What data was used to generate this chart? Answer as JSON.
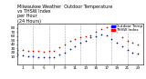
{
  "title": "Milwaukee Weather  Outdoor Temperature\nvs THSW Index\nper Hour\n(24 Hours)",
  "title_color": "#000000",
  "background_color": "#ffffff",
  "plot_bg_color": "#ffffff",
  "grid_color": "#aaaaaa",
  "xlim": [
    0,
    24
  ],
  "ylim": [
    -10,
    90
  ],
  "x_ticks": [
    1,
    3,
    5,
    7,
    9,
    11,
    13,
    15,
    17,
    19,
    21,
    23
  ],
  "y_ticks": [
    10,
    20,
    30,
    40,
    50,
    60,
    70,
    80
  ],
  "y_tick_labels": [
    "10",
    "20",
    "30",
    "40",
    "50",
    "60",
    "70",
    "80"
  ],
  "temp_color": "#cc0000",
  "thsw_color": "#0000cc",
  "legend_temp_label": "Outdoor Temp",
  "legend_thsw_label": "THSW Index",
  "legend_temp_color": "#0000ff",
  "legend_thsw_color": "#ff0000",
  "temp_x": [
    0,
    1,
    2,
    3,
    4,
    5,
    6,
    7,
    8,
    9,
    10,
    11,
    12,
    13,
    14,
    15,
    16,
    17,
    18,
    19,
    20,
    21,
    22,
    23
  ],
  "temp_y": [
    27,
    26,
    25,
    24,
    23,
    22,
    23,
    24,
    32,
    40,
    48,
    53,
    57,
    60,
    62,
    70,
    78,
    82,
    78,
    70,
    58,
    48,
    43,
    40
  ],
  "thsw_x": [
    0,
    1,
    2,
    3,
    4,
    5,
    6,
    7,
    8,
    9,
    10,
    11,
    12,
    13,
    14,
    15,
    16,
    17,
    18,
    19,
    20,
    21,
    22,
    23
  ],
  "thsw_y": [
    14,
    13,
    11,
    10,
    9,
    8,
    8,
    9,
    14,
    20,
    29,
    36,
    43,
    49,
    56,
    60,
    64,
    62,
    52,
    44,
    34,
    26,
    20,
    18
  ],
  "vgrid_positions": [
    3,
    6,
    9,
    12,
    15,
    18,
    21
  ],
  "marker_size": 1.5,
  "title_fontsize": 3.5,
  "tick_fontsize": 3.0,
  "legend_fontsize": 3.0
}
